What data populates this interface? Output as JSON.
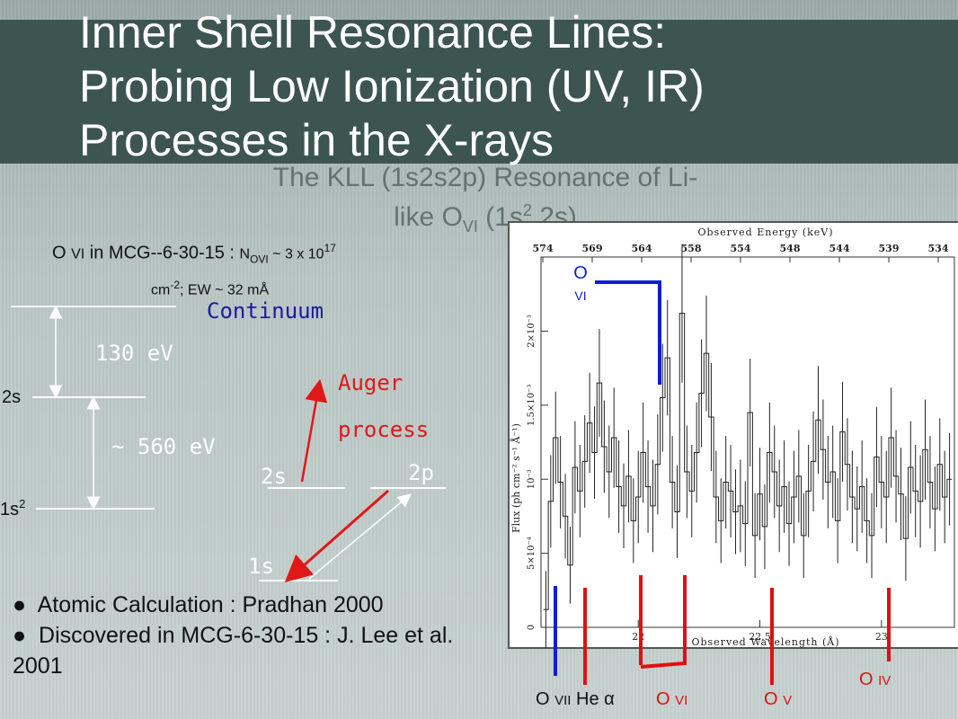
{
  "slide": {
    "title_lines": [
      "Inner Shell Resonance Lines:",
      "Probing Low Ionization (UV, IR)",
      "Processes in the X-rays"
    ],
    "ghost_subtitle": {
      "line1": "The KLL (1s2s2p) Resonance of Li-",
      "line2_prefix": "like O",
      "line2_ion": "VI",
      "line2_config": " (1s",
      "line2_sup": "2",
      "line2_end": " 2s)"
    },
    "ovi_caption": {
      "ion_prefix": "O ",
      "ion": "VI",
      "galaxy": " in MCG--6-30-15 : ",
      "column_label": "N",
      "column_sub": "OVI",
      "column_value": " ~ 3 x 10",
      "column_exp": "17",
      "unit": "cm",
      "unit_exp": "-2",
      "ew": "; EW ~ 32 mÅ"
    },
    "diagram": {
      "continuum": "Continuum",
      "energy_top": "130 eV",
      "energy_bottom": "~ 560 eV",
      "level_2s": "2s",
      "level_1s2": "1s",
      "level_1s2_sup": "2",
      "auger_line1": "Auger",
      "auger_line2": "process",
      "sub_2s": "2s",
      "sub_2p": "2p",
      "sub_1s": "1s"
    },
    "bullets": [
      {
        "marker": "●",
        "text": "Atomic Calculation :  Pradhan 2000"
      },
      {
        "marker": "●",
        "text": "Discovered in MCG-6-30-15 :   J. Lee et al. 2001"
      }
    ],
    "colors": {
      "title_band": "#3d5551",
      "blue_marker": "#0a1fd6",
      "red_marker": "#e01010",
      "hand_blue": "#1a1aa0",
      "hand_red": "#e01818"
    }
  },
  "chart_data": {
    "type": "line",
    "top_axis_label": "Observed Energy (keV)",
    "top_ticks": [
      "574",
      "569",
      "564",
      "558",
      "554",
      "548",
      "544",
      "539",
      "534"
    ],
    "xlabel": "Observed Wavelength (Å)",
    "x_ticks": [
      {
        "value": 22,
        "label": "22"
      },
      {
        "value": 22.5,
        "label": "22.5"
      },
      {
        "value": 23,
        "label": "23"
      }
    ],
    "xlim": [
      21.6,
      23.3
    ],
    "ylabel": "Flux (ph cm⁻² s⁻¹ Å⁻¹)",
    "y_ticks": [
      {
        "value": 0,
        "label": "0"
      },
      {
        "value": 0.0005,
        "label": "5×10⁻⁴"
      },
      {
        "value": 0.001,
        "label": "10⁻³"
      },
      {
        "value": 0.0015,
        "label": "1.5×10⁻³"
      },
      {
        "value": 0.002,
        "label": "2×10⁻³"
      }
    ],
    "ylim": [
      0,
      0.0025
    ],
    "series": [
      {
        "x": [
          21.62,
          21.64,
          21.66,
          21.68,
          21.7,
          21.72,
          21.74,
          21.76,
          21.78,
          21.8,
          21.82,
          21.84,
          21.86,
          21.88,
          21.9,
          21.92,
          21.94,
          21.96,
          21.98,
          22.0,
          22.02,
          22.04,
          22.06,
          22.08,
          22.1,
          22.12,
          22.14,
          22.16,
          22.18,
          22.2,
          22.22,
          22.24,
          22.26,
          22.28,
          22.3,
          22.32,
          22.34,
          22.36,
          22.38,
          22.4,
          22.42,
          22.44,
          22.46,
          22.48,
          22.5,
          22.52,
          22.54,
          22.56,
          22.58,
          22.6,
          22.62,
          22.64,
          22.66,
          22.68,
          22.7,
          22.72,
          22.74,
          22.76,
          22.78,
          22.8,
          22.82,
          22.84,
          22.86,
          22.88,
          22.9,
          22.92,
          22.94,
          22.96,
          22.98,
          23.0,
          23.02,
          23.04,
          23.06,
          23.08,
          23.1,
          23.12,
          23.14,
          23.16,
          23.18,
          23.2,
          23.22,
          23.24,
          23.26,
          23.28
        ],
        "values": [
          0.00012,
          0.00085,
          0.00128,
          0.00098,
          0.00075,
          0.00042,
          0.00108,
          0.00092,
          0.00112,
          0.00138,
          0.00118,
          0.00165,
          0.00122,
          0.00105,
          0.00128,
          0.00095,
          0.00082,
          0.00102,
          0.00072,
          0.00088,
          0.00118,
          0.00095,
          0.00082,
          0.0011,
          0.00155,
          0.00182,
          0.00098,
          0.00078,
          0.00212,
          0.00105,
          0.00092,
          0.00118,
          0.00158,
          0.00185,
          0.00142,
          0.00088,
          0.00072,
          0.00098,
          0.00092,
          0.00078,
          0.00082,
          0.0007,
          0.00145,
          0.00062,
          0.0009,
          0.00068,
          0.00118,
          0.00105,
          0.00082,
          0.00095,
          0.0007,
          0.00088,
          0.00102,
          0.00062,
          0.00092,
          0.00112,
          0.0014,
          0.0012,
          0.00098,
          0.00105,
          0.00072,
          0.00132,
          0.0011,
          0.00088,
          0.0008,
          0.00095,
          0.00072,
          0.00062,
          0.00115,
          0.00098,
          0.00088,
          0.00128,
          0.00102,
          0.0009,
          0.0006,
          0.00108,
          0.00092,
          0.00085,
          0.0012,
          0.00098,
          0.0008,
          0.0011,
          0.00088,
          0.001
        ],
        "errors": [
          0.0001,
          0.00012,
          0.00012,
          0.00012,
          0.00011,
          0.0001,
          0.00012,
          0.00012,
          0.00012,
          0.00013,
          0.00012,
          0.00014,
          0.00012,
          0.00012,
          0.00013,
          0.00012,
          0.00011,
          0.00012,
          0.00011,
          0.00012,
          0.00013,
          0.00012,
          0.00012,
          0.00013,
          0.00014,
          0.00015,
          0.00012,
          0.00012,
          0.00018,
          0.00012,
          0.00012,
          0.00013,
          0.00014,
          0.00015,
          0.00014,
          0.00012,
          0.00011,
          0.00012,
          0.00012,
          0.00011,
          0.00012,
          0.00011,
          0.00014,
          0.00011,
          0.00012,
          0.00011,
          0.00013,
          0.00012,
          0.00012,
          0.00012,
          0.00011,
          0.00012,
          0.00012,
          0.00011,
          0.00012,
          0.00013,
          0.00014,
          0.00013,
          0.00012,
          0.00012,
          0.00011,
          0.00013,
          0.00012,
          0.00012,
          0.00011,
          0.00012,
          0.00011,
          0.00011,
          0.00013,
          0.00012,
          0.00012,
          0.00013,
          0.00012,
          0.00012,
          0.00011,
          0.00012,
          0.00012,
          0.00012,
          0.00013,
          0.00012,
          0.00011,
          0.00012,
          0.00012,
          0.00012
        ]
      }
    ],
    "annotations": {
      "ovi_upper": {
        "ion": "O",
        "stage": "VI",
        "x": 21.97
      },
      "markers": [
        {
          "ion": "O",
          "stage": "VII",
          "extra": " He α",
          "x": 21.66,
          "color": "blue"
        },
        {
          "ion": "",
          "stage": "",
          "extra": "",
          "x": 21.78,
          "color": "red"
        },
        {
          "ion": "O",
          "stage": "VI",
          "extra": "",
          "x": 22.01,
          "color": "red"
        },
        {
          "ion": "",
          "stage": "",
          "extra": "",
          "x": 22.19,
          "color": "red"
        },
        {
          "ion": "O",
          "stage": "V",
          "extra": "",
          "x": 22.55,
          "color": "red"
        },
        {
          "ion": "O",
          "stage": "IV",
          "extra": "",
          "x": 23.03,
          "color": "red"
        }
      ]
    }
  }
}
